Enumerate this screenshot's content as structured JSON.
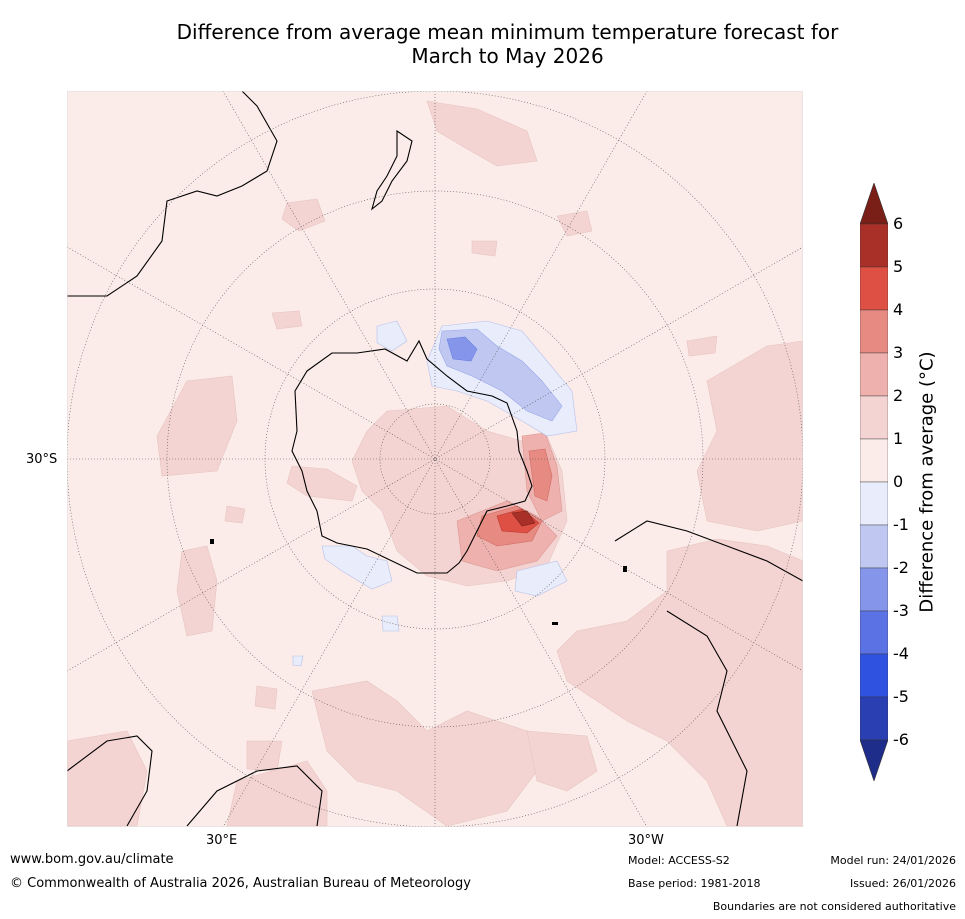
{
  "title": {
    "line1": "Difference from average mean minimum temperature forecast for",
    "line2": "March to May 2026"
  },
  "map": {
    "projection": "south-polar-stereographic",
    "lat_label": "30°S",
    "lon_labels": [
      "30°E",
      "30°W"
    ],
    "colors": {
      "ocean_background": "#fbece9",
      "anomaly_0_1": "#fbece9",
      "anomaly_1_2": "#f4d4d2",
      "anomaly_2_3": "#eeb1ad",
      "anomaly_3_4": "#e78a82",
      "anomaly_4_5": "#dd5043",
      "anomaly_5_6": "#a83028",
      "anomaly_neg_0_1": "#e8ecfb",
      "anomaly_neg_1_2": "#c0c8f2",
      "anomaly_neg_2_3": "#8596ea",
      "coast": "#000000",
      "graticule": "#555555"
    }
  },
  "colorbar": {
    "title": "Difference from average (°C)",
    "ticks": [
      "6",
      "5",
      "4",
      "3",
      "2",
      "1",
      "0",
      "-1",
      "-2",
      "-3",
      "-4",
      "-5",
      "-6"
    ],
    "bins": [
      {
        "from": 5,
        "to": 6,
        "color": "#a83028"
      },
      {
        "from": 4,
        "to": 5,
        "color": "#dd5043"
      },
      {
        "from": 3,
        "to": 4,
        "color": "#e78a82"
      },
      {
        "from": 2,
        "to": 3,
        "color": "#eeb1ad"
      },
      {
        "from": 1,
        "to": 2,
        "color": "#f4d4d2"
      },
      {
        "from": 0,
        "to": 1,
        "color": "#fbece9"
      },
      {
        "from": -1,
        "to": 0,
        "color": "#e8ecfb"
      },
      {
        "from": -2,
        "to": -1,
        "color": "#c0c8f2"
      },
      {
        "from": -3,
        "to": -2,
        "color": "#8596ea"
      },
      {
        "from": -4,
        "to": -3,
        "color": "#5a72e3"
      },
      {
        "from": -5,
        "to": -4,
        "color": "#2f52e0"
      },
      {
        "from": -6,
        "to": -5,
        "color": "#2a3fb1"
      }
    ],
    "over_color": "#7a1e18",
    "under_color": "#1f2d8a"
  },
  "footer": {
    "website": "www.bom.gov.au/climate",
    "copyright": "© Commonwealth of Australia 2026, Australian Bureau of Meteorology",
    "model": "Model: ACCESS-S2",
    "base_period": "Base period: 1981-2018",
    "model_run": "Model run: 24/01/2026",
    "issued": "Issued: 26/01/2026",
    "disclaimer": "Boundaries are not considered authoritative"
  }
}
